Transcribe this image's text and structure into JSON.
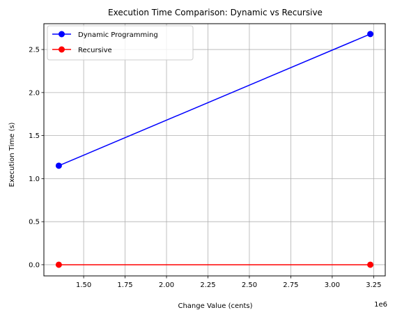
{
  "chart_data": {
    "type": "line",
    "title": "Execution Time Comparison: Dynamic vs Recursive",
    "xlabel": "Change Value (cents)",
    "ylabel": "Execution Time (s)",
    "x_offset_label": "1e6",
    "x_scale": 1000000,
    "xlim": [
      1260000,
      3320000
    ],
    "ylim": [
      -0.13,
      2.8
    ],
    "x_ticks": [
      1250000,
      1500000,
      1750000,
      2000000,
      2250000,
      2500000,
      2750000,
      3000000,
      3250000
    ],
    "x_tick_labels": [
      "1.25",
      "1.50",
      "1.75",
      "2.00",
      "2.25",
      "2.50",
      "2.75",
      "3.00",
      "3.25"
    ],
    "y_ticks": [
      0.0,
      0.5,
      1.0,
      1.5,
      2.0,
      2.5
    ],
    "y_tick_labels": [
      "0.0",
      "0.5",
      "1.0",
      "1.5",
      "2.0",
      "2.5"
    ],
    "grid": true,
    "legend_position": "top-left",
    "series": [
      {
        "name": "Dynamic Programming",
        "color": "#0000ff",
        "marker": "circle",
        "x": [
          1350000,
          3230000
        ],
        "y": [
          1.15,
          2.68
        ]
      },
      {
        "name": "Recursive",
        "color": "#ff0000",
        "marker": "circle",
        "x": [
          1350000,
          3230000
        ],
        "y": [
          0.0,
          0.0
        ]
      }
    ]
  }
}
